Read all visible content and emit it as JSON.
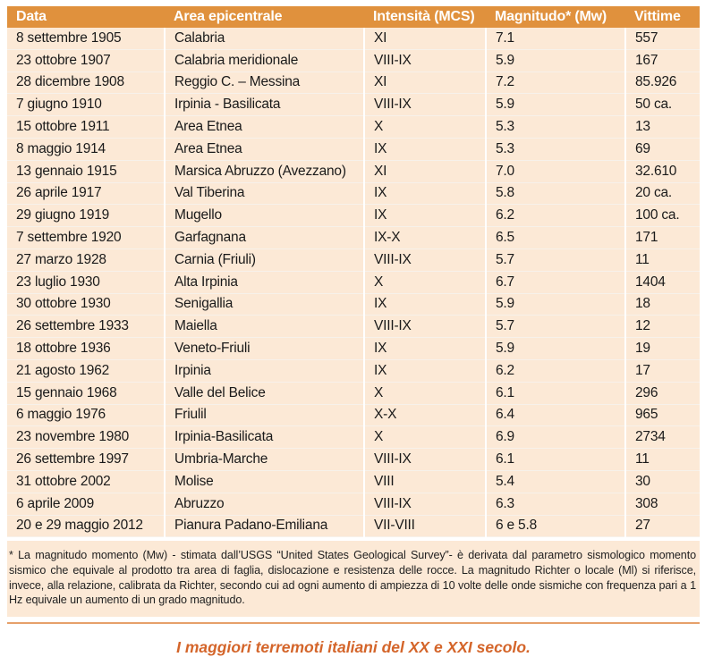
{
  "table": {
    "headers": [
      "Data",
      "Area epicentrale",
      "Intensità (MCS)",
      "Magnitudo* (Mw)",
      "Vittime"
    ],
    "rows": [
      [
        "8 settembre 1905",
        "Calabria",
        "XI",
        "7.1",
        "557"
      ],
      [
        "23 ottobre 1907",
        "Calabria meridionale",
        "VIII-IX",
        "5.9",
        "167"
      ],
      [
        "28 dicembre 1908",
        "Reggio C. – Messina",
        "XI",
        "7.2",
        "85.926"
      ],
      [
        "7 giugno 1910",
        "Irpinia - Basilicata",
        "VIII-IX",
        "5.9",
        "50 ca."
      ],
      [
        "15 ottobre 1911",
        "Area Etnea",
        "X",
        "5.3",
        "13"
      ],
      [
        "8 maggio 1914",
        "Area Etnea",
        "IX",
        "5.3",
        "69"
      ],
      [
        "13 gennaio 1915",
        "Marsica Abruzzo (Avezzano)",
        "XI",
        "7.0",
        "32.610"
      ],
      [
        "26 aprile 1917",
        "Val Tiberina",
        "IX",
        "5.8",
        "20 ca."
      ],
      [
        "29 giugno 1919",
        "Mugello",
        "IX",
        "6.2",
        "100 ca."
      ],
      [
        "7 settembre 1920",
        "Garfagnana",
        "IX-X",
        "6.5",
        "171"
      ],
      [
        "27 marzo 1928",
        "Carnia (Friuli)",
        "VIII-IX",
        "5.7",
        "11"
      ],
      [
        "23 luglio 1930",
        "Alta Irpinia",
        "X",
        "6.7",
        "1404"
      ],
      [
        "30 ottobre 1930",
        "Senigallia",
        "IX",
        "5.9",
        "18"
      ],
      [
        "26 settembre 1933",
        "Maiella",
        "VIII-IX",
        "5.7",
        "12"
      ],
      [
        "18 ottobre 1936",
        "Veneto-Friuli",
        "IX",
        "5.9",
        "19"
      ],
      [
        "21 agosto 1962",
        "Irpinia",
        "IX",
        "6.2",
        "17"
      ],
      [
        "15 gennaio 1968",
        "Valle del Belice",
        "X",
        "6.1",
        "296"
      ],
      [
        "6 maggio 1976",
        "Friulil",
        "X-X",
        "6.4",
        "965"
      ],
      [
        "23 novembre 1980",
        "Irpinia-Basilicata",
        "X",
        "6.9",
        "2734"
      ],
      [
        "26 settembre 1997",
        "Umbria-Marche",
        "VIII-IX",
        "6.1",
        "11"
      ],
      [
        "31 ottobre 2002",
        "Molise",
        "VIII",
        "5.4",
        "30"
      ],
      [
        "6 aprile 2009",
        "Abruzzo",
        "VIII-IX",
        "6.3",
        "308"
      ],
      [
        "20 e 29 maggio 2012",
        "Pianura Padano-Emiliana",
        "VII-VIII",
        "6 e 5.8",
        "27"
      ]
    ]
  },
  "footnote": "* La magnitudo momento (Mw) - stimata dall’USGS “United States Geological Survey”- è derivata dal parametro sismologico momento sismico che equivale al prodotto tra area di faglia, dislocazione e resistenza delle rocce. La magnitudo Richter o locale (Ml) si riferisce, invece, alla relazione, calibrata da Richter, secondo cui ad ogni aumento di ampiezza di 10 volte delle onde sismiche con frequenza pari a 1 Hz equivale un aumento di un grado magnitudo.",
  "caption": "I maggiori terremoti italiani del XX e XXI secolo.",
  "colors": {
    "header_bg": "#e0913d",
    "row_bg": "#fce9d6",
    "caption": "#d4652a"
  }
}
